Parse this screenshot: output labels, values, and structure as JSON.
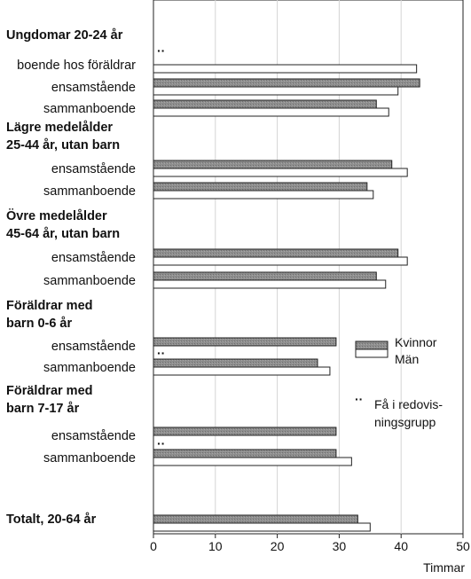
{
  "chart_data": {
    "type": "bar",
    "orientation": "horizontal",
    "xlabel": "Timmar",
    "xlim": [
      0,
      50
    ],
    "xticks": [
      0,
      10,
      20,
      30,
      40,
      50
    ],
    "grid": true,
    "legend_position": "right",
    "series": [
      {
        "name": "Kvinnor",
        "color": "#8c8c8c"
      },
      {
        "name": "Män",
        "color": "#ffffff"
      }
    ],
    "groups": [
      {
        "title_lines": [
          "Ungdomar 20-24 år"
        ],
        "rows": [
          {
            "label": "boende hos föräldrar",
            "kvinnor": null,
            "man": 42.5,
            "few_marker": true
          },
          {
            "label": "ensamstående",
            "kvinnor": 43.0,
            "man": 39.5,
            "few_marker": false
          },
          {
            "label": "sammanboende",
            "kvinnor": 36.0,
            "man": 38.0,
            "few_marker": false
          }
        ]
      },
      {
        "title_lines": [
          "Lägre medelålder",
          "25-44 år, utan barn"
        ],
        "rows": [
          {
            "label": "ensamstående",
            "kvinnor": 38.5,
            "man": 41.0,
            "few_marker": false
          },
          {
            "label": "sammanboende",
            "kvinnor": 34.5,
            "man": 35.5,
            "few_marker": false
          }
        ]
      },
      {
        "title_lines": [
          "Övre medelålder",
          "45-64 år, utan barn"
        ],
        "rows": [
          {
            "label": "ensamstående",
            "kvinnor": 39.5,
            "man": 41.0,
            "few_marker": false
          },
          {
            "label": "sammanboende",
            "kvinnor": 36.0,
            "man": 37.5,
            "few_marker": false
          }
        ]
      },
      {
        "title_lines": [
          "Föräldrar med",
          "barn 0-6 år"
        ],
        "rows": [
          {
            "label": "ensamstående",
            "kvinnor": 29.5,
            "man": null,
            "few_marker": false
          },
          {
            "label": "sammanboende",
            "kvinnor": 26.5,
            "man": 28.5,
            "few_marker": true
          }
        ]
      },
      {
        "title_lines": [
          "Föräldrar med",
          "barn 7-17 år"
        ],
        "rows": [
          {
            "label": "ensamstående",
            "kvinnor": 29.5,
            "man": null,
            "few_marker": false
          },
          {
            "label": "sammanboende",
            "kvinnor": 29.5,
            "man": 32.0,
            "few_marker": true
          }
        ]
      },
      {
        "title_lines": [
          "Totalt, 20-64 år"
        ],
        "rows": [
          {
            "label": "",
            "kvinnor": 33.0,
            "man": 35.0,
            "few_marker": false
          }
        ]
      }
    ],
    "legend": {
      "kvinnor": "Kvinnor",
      "man": "Män"
    },
    "note": {
      "marker": "··",
      "lines": [
        "Få i redovis-",
        "ningsgrupp"
      ]
    }
  }
}
